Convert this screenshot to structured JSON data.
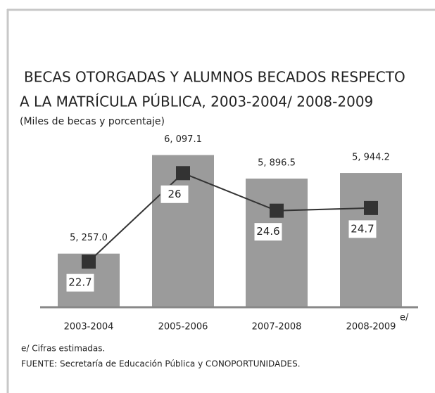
{
  "chart_data": {
    "type": "bar",
    "title_lines": [
      "BECAS OTORGADAS Y  ALUMNOS BECADOS RESPECTO",
      "A LA MATRÍCULA PÚBLICA, 2003-2004/ 2008-2009"
    ],
    "subtitle": "(Miles de becas y porcentaje)",
    "categories": [
      "2003-2004",
      "2005-2006",
      "2007-2008",
      "2008-2009"
    ],
    "annotation": "e/",
    "series": [
      {
        "name": "Becas otorgadas",
        "type": "bar",
        "color": "#9b9b9b",
        "values": [
          5257.0,
          6097.1,
          5896.5,
          5944.2
        ],
        "value_labels": [
          "5, 257.0",
          "6, 097.1",
          "5, 896.5",
          "5, 944.2"
        ]
      },
      {
        "name": "Alumnos becados",
        "type": "line",
        "axis": "y2",
        "color": "#333333",
        "values": [
          22.7,
          26.0,
          24.6,
          24.7
        ]
      }
    ],
    "ylim": [
      4800,
      6400
    ],
    "y2lim": [
      21,
      28
    ],
    "notes": [
      "e/ Cifras estimadas.",
      "FUENTE: Secretaría de Educación Pública y CONOPORTUNIDADES."
    ]
  }
}
